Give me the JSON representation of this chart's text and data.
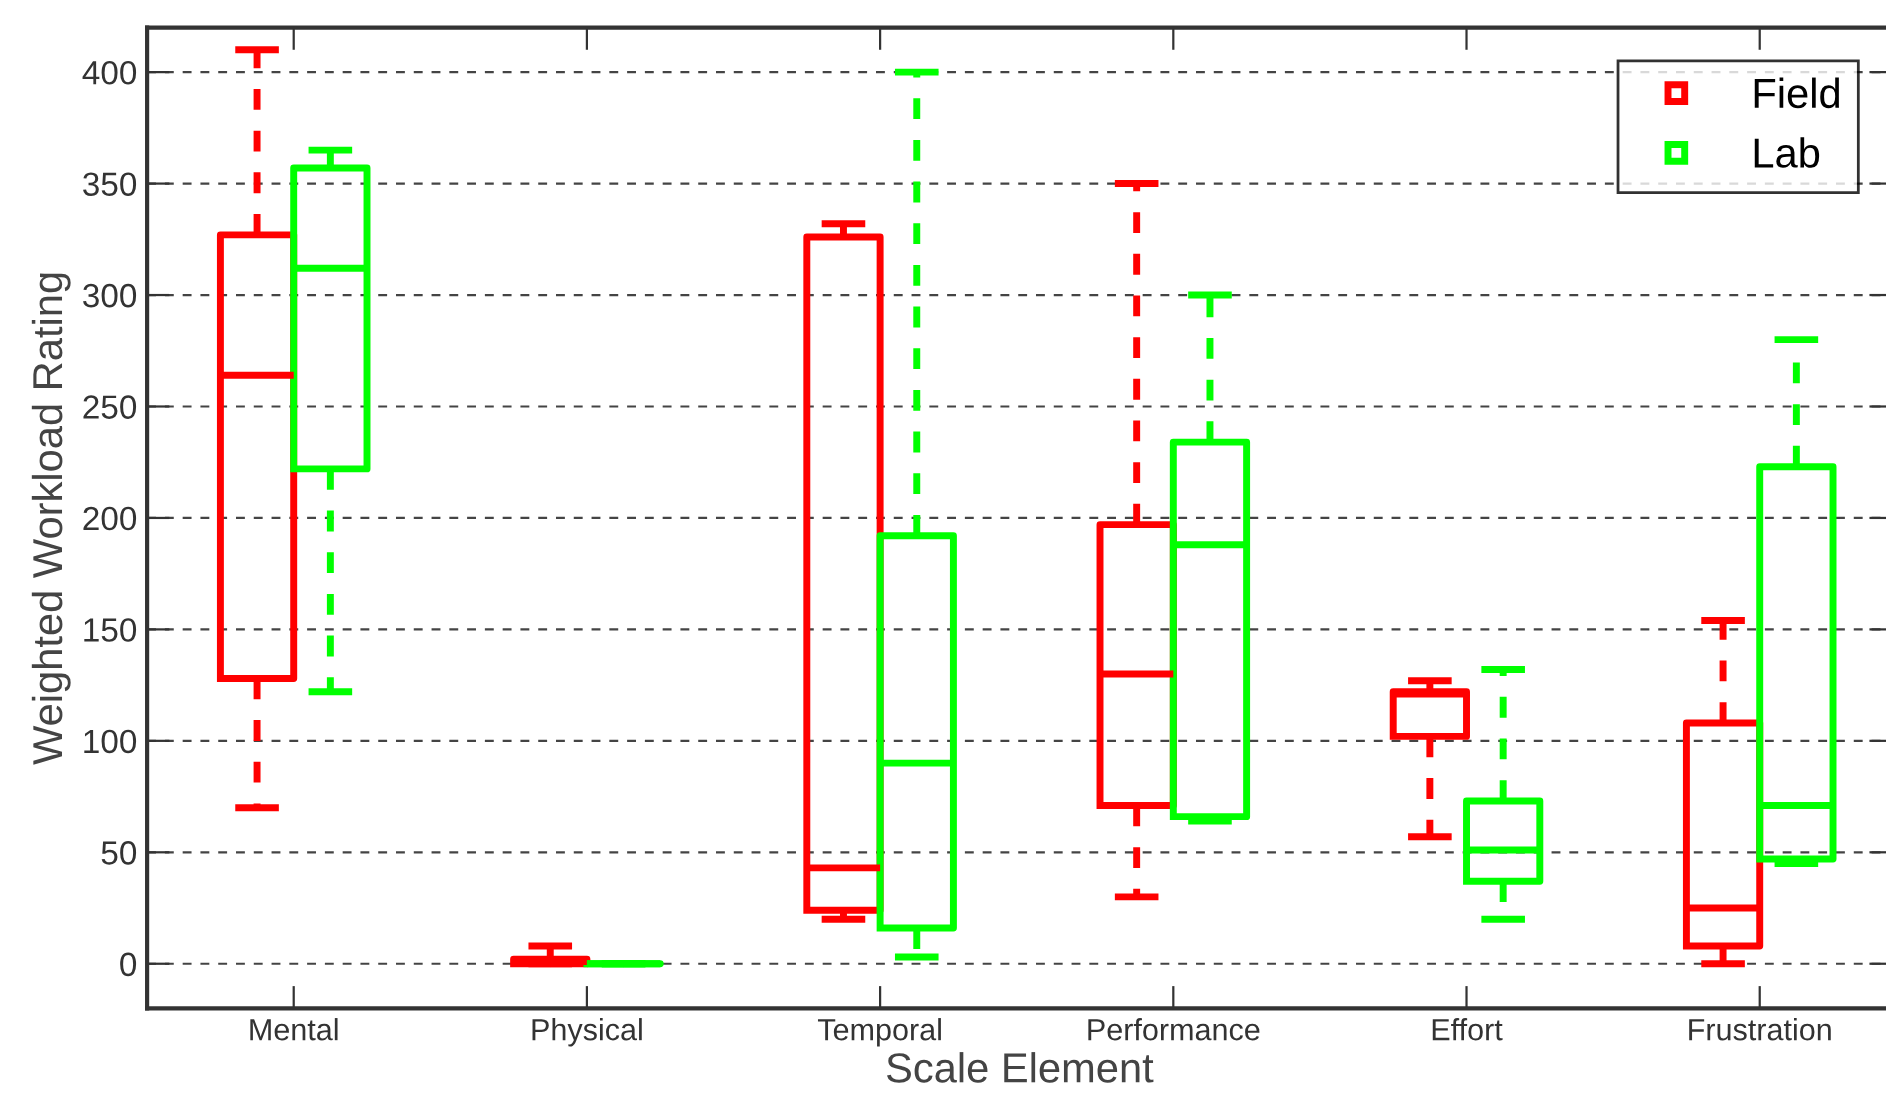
{
  "chart_data": {
    "type": "box",
    "xlabel": "Scale Element",
    "ylabel": "Weighted Workload Rating",
    "categories": [
      "Mental",
      "Physical",
      "Temporal",
      "Performance",
      "Effort",
      "Frustration"
    ],
    "ylim": [
      -20,
      420
    ],
    "yticks": [
      0,
      50,
      100,
      150,
      200,
      250,
      300,
      350,
      400
    ],
    "grid": "y",
    "legend": "top right",
    "line_style": "dashed",
    "series": [
      {
        "name": "Field",
        "color": "#ff0000",
        "boxes": [
          {
            "low": 70,
            "q1": 128,
            "median": 264,
            "q3": 327,
            "high": 410
          },
          {
            "low": 0,
            "q1": 0,
            "median": 1,
            "q3": 2,
            "high": 8
          },
          {
            "low": 20,
            "q1": 24,
            "median": 43,
            "q3": 326,
            "high": 332
          },
          {
            "low": 30,
            "q1": 71,
            "median": 130,
            "q3": 197,
            "high": 350
          },
          {
            "low": 57,
            "q1": 102,
            "median": 121,
            "q3": 122,
            "high": 127
          },
          {
            "low": 0,
            "q1": 8,
            "median": 25,
            "q3": 108,
            "high": 154
          }
        ]
      },
      {
        "name": "Lab",
        "color": "#00ff00",
        "boxes": [
          {
            "low": 122,
            "q1": 222,
            "median": 312,
            "q3": 357,
            "high": 365
          },
          {
            "low": 0,
            "q1": 0,
            "median": 0,
            "q3": 0,
            "high": 0
          },
          {
            "low": 3,
            "q1": 16,
            "median": 90,
            "q3": 192,
            "high": 400
          },
          {
            "low": 64,
            "q1": 66,
            "median": 188,
            "q3": 234,
            "high": 300
          },
          {
            "low": 20,
            "q1": 37,
            "median": 51,
            "q3": 73,
            "high": 132
          },
          {
            "low": 45,
            "q1": 47,
            "median": 71,
            "q3": 223,
            "high": 280
          }
        ]
      }
    ]
  }
}
